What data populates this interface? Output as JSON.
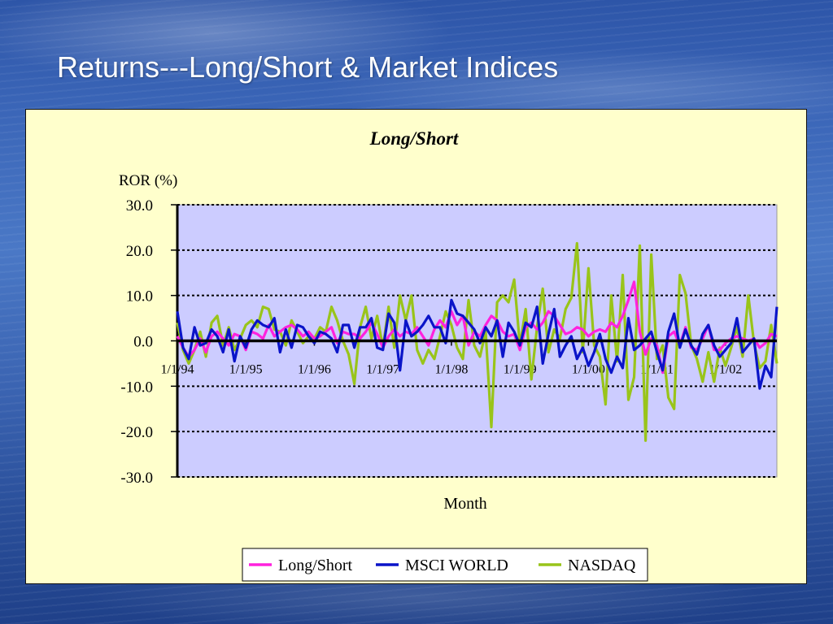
{
  "slide": {
    "title": "Returns---Long/Short & Market Indices"
  },
  "colors": {
    "long_short": "#ff22dd",
    "msci_world": "#0a14c8",
    "nasdaq": "#99c41a",
    "plot_area": "#ccccff",
    "panel": "#ffffcc"
  },
  "chart_data": {
    "type": "line",
    "title": "Long/Short",
    "ylabel": "ROR (%)",
    "xlabel": "Month",
    "ylim": [
      -30,
      30
    ],
    "y_ticks": [
      30,
      20,
      10,
      0,
      -10,
      -20,
      -30
    ],
    "y_tick_labels": [
      "30.0",
      "20.0",
      "10.0",
      "0.0",
      "-10.0",
      "-20.0",
      "-30.0"
    ],
    "x_tick_labels": [
      "1/1/94",
      "1/1/95",
      "1/1/96",
      "1/1/97",
      "1/1/98",
      "1/1/99",
      "1/1/00",
      "1/1/01",
      "1/1/02"
    ],
    "x_tick_index": [
      0,
      12,
      24,
      36,
      48,
      60,
      72,
      84,
      96
    ],
    "months": 106,
    "grid": "dashed horizontal",
    "legend": "bottom",
    "series": [
      {
        "name": "Long/Short",
        "color": "#ff22dd",
        "values": [
          1.0,
          -1.5,
          -3.5,
          -2.0,
          0.5,
          -2.5,
          1.0,
          2.0,
          0.5,
          -1.0,
          1.5,
          1.0,
          -2.0,
          2.0,
          1.5,
          0.5,
          3.5,
          1.0,
          2.0,
          3.0,
          3.5,
          2.5,
          1.0,
          2.0,
          0.5,
          1.0,
          2.0,
          3.0,
          -0.5,
          2.0,
          1.5,
          1.5,
          0.5,
          2.0,
          4.0,
          1.5,
          -1.5,
          1.0,
          2.5,
          1.0,
          2.0,
          1.5,
          3.0,
          1.0,
          -1.0,
          2.5,
          4.5,
          3.0,
          6.5,
          3.5,
          5.5,
          -1.0,
          2.0,
          1.0,
          3.5,
          5.5,
          4.5,
          2.0,
          1.0,
          1.5,
          -2.0,
          3.0,
          4.0,
          2.5,
          4.0,
          6.5,
          5.5,
          3.5,
          1.5,
          2.0,
          3.0,
          2.5,
          1.0,
          2.0,
          2.5,
          2.0,
          4.0,
          3.0,
          5.5,
          9.0,
          13.0,
          2.0,
          -3.0,
          0.5,
          -1.0,
          -7.0,
          1.0,
          2.0,
          -1.0,
          3.0,
          -1.5,
          -2.0,
          0.5,
          3.5,
          -2.0,
          -2.0,
          -0.5,
          0.5,
          1.0,
          0.5,
          0.0,
          0.5,
          -1.5,
          -0.5,
          1.5,
          1.0
        ]
      },
      {
        "name": "MSCI WORLD",
        "color": "#0a14c8",
        "values": [
          6.5,
          -1.5,
          -4.0,
          3.0,
          -1.0,
          -0.5,
          2.5,
          1.0,
          -2.5,
          2.5,
          -4.5,
          1.0,
          -1.5,
          2.5,
          4.5,
          3.5,
          3.0,
          5.0,
          -2.5,
          2.5,
          -1.5,
          3.5,
          3.0,
          1.0,
          -0.5,
          2.0,
          1.5,
          0.5,
          -2.5,
          3.5,
          3.5,
          -1.5,
          3.0,
          3.0,
          5.0,
          -1.5,
          -2.0,
          6.0,
          4.0,
          -6.5,
          4.5,
          1.0,
          2.0,
          3.5,
          5.5,
          3.0,
          3.0,
          -0.5,
          9.0,
          6.0,
          5.5,
          4.0,
          2.5,
          -0.5,
          3.0,
          1.0,
          4.5,
          -3.5,
          4.0,
          2.0,
          -1.0,
          4.0,
          3.0,
          7.5,
          -5.0,
          1.5,
          7.0,
          -3.5,
          -1.0,
          1.0,
          -4.0,
          -1.5,
          -5.5,
          -2.5,
          1.5,
          -4.0,
          -7.0,
          -3.5,
          -6.0,
          5.0,
          -2.0,
          -1.0,
          0.5,
          2.0,
          -2.5,
          -6.5,
          2.0,
          6.0,
          -1.5,
          2.5,
          -1.0,
          -3.0,
          1.5,
          3.5,
          -1.0,
          -3.5,
          -2.0,
          -0.5,
          5.0,
          -2.5,
          -1.0,
          0.5,
          -10.5,
          -5.5,
          -8.0,
          7.5
        ]
      },
      {
        "name": "NASDAQ",
        "color": "#99c41a",
        "values": [
          4.0,
          -2.0,
          -5.0,
          -2.0,
          2.0,
          -3.5,
          4.0,
          5.5,
          -1.0,
          3.0,
          -2.0,
          0.5,
          3.5,
          4.5,
          3.0,
          7.5,
          7.0,
          2.5,
          2.0,
          -1.0,
          4.5,
          2.0,
          -0.5,
          1.0,
          0.5,
          3.0,
          2.0,
          7.5,
          4.5,
          0.0,
          -3.0,
          -9.5,
          3.0,
          7.5,
          0.5,
          5.5,
          -1.5,
          7.5,
          -1.5,
          10.0,
          4.5,
          10.0,
          -2.0,
          -5.0,
          -2.0,
          -4.0,
          1.0,
          6.5,
          3.5,
          -1.5,
          -4.0,
          9.0,
          -1.0,
          -3.5,
          2.0,
          -19.0,
          8.5,
          10.0,
          8.5,
          13.5,
          -1.0,
          7.0,
          -8.5,
          3.0,
          11.5,
          -2.5,
          2.5,
          0.5,
          7.0,
          9.5,
          21.5,
          -2.5,
          16.0,
          -1.0,
          -3.5,
          -14.0,
          10.0,
          -4.5,
          14.5,
          -13.0,
          -8.0,
          21.0,
          -22.0,
          19.0,
          -4.0,
          -1.0,
          -12.5,
          -15.0,
          14.5,
          10.5,
          -1.0,
          -4.0,
          -9.0,
          -2.5,
          -9.0,
          -1.5,
          -5.5,
          -1.5,
          3.0,
          -3.5,
          10.0,
          -0.5,
          -6.0,
          -4.5,
          3.5,
          -5.0
        ]
      }
    ]
  }
}
